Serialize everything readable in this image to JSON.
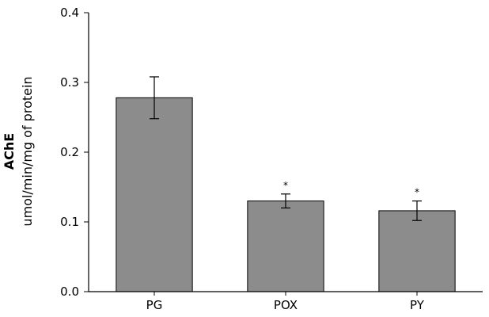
{
  "chart_data": {
    "type": "bar",
    "title": "",
    "ylabel_bold": "AChE",
    "ylabel": "umol/min/mg of protein",
    "xlabel": "",
    "categories": [
      "PG",
      "POX",
      "PY"
    ],
    "values": [
      0.278,
      0.13,
      0.116
    ],
    "errors": [
      0.03,
      0.01,
      0.014
    ],
    "significance": [
      "",
      "*",
      "*"
    ],
    "ylim": [
      0,
      0.4
    ],
    "yticks": [
      0.0,
      0.1,
      0.2,
      0.3,
      0.4
    ],
    "ytick_labels": [
      "0.0",
      "0.1",
      "0.2",
      "0.3",
      "0.4"
    ],
    "bar_color": "#8c8c8c",
    "grid": false,
    "legend": "none"
  }
}
